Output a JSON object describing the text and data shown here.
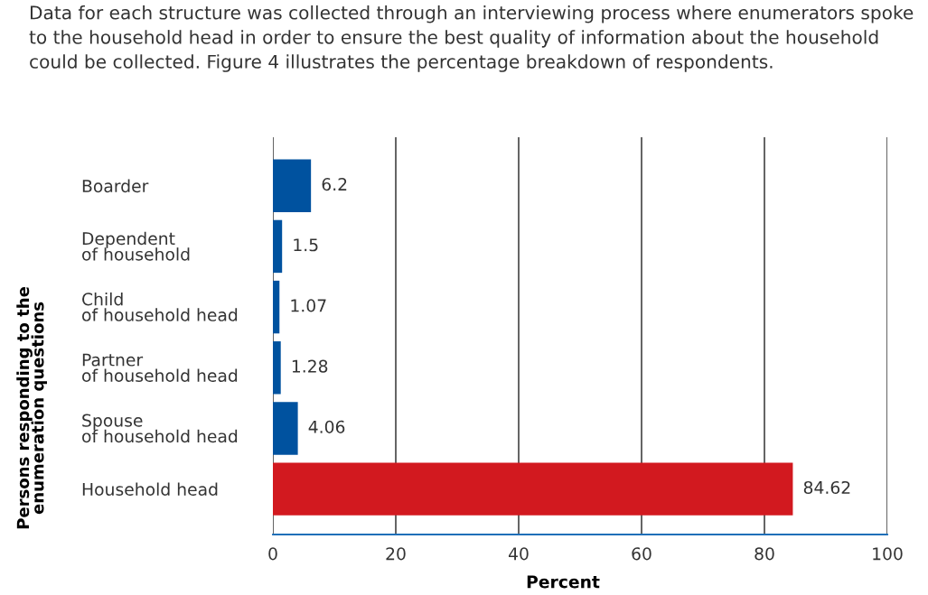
{
  "chart_data": {
    "type": "bar",
    "orientation": "horizontal",
    "annotations": [
      "Data for each structure was collected through an interviewing process where enumerators spoke to the household head in order to ensure the best quality of information about the household could be collected. Figure 4 illustrates the percentage breakdown of respondents."
    ],
    "xlabel": "Percent",
    "ylabel": "Persons responding to the\nenumeration questions",
    "categories": [
      "Boarder",
      "Dependent\nof household",
      "Child\nof household head",
      "Partner\nof household head",
      "Spouse\nof household head",
      "Household head"
    ],
    "values": [
      6.2,
      1.5,
      1.07,
      1.28,
      4.06,
      84.62
    ],
    "colors": [
      "#00529f",
      "#00529f",
      "#00529f",
      "#00529f",
      "#00529f",
      "#d2191f"
    ],
    "xlim": [
      0,
      100
    ],
    "xticks": [
      0,
      20,
      40,
      60,
      80,
      100
    ],
    "grid": "x",
    "data_labels": true
  }
}
